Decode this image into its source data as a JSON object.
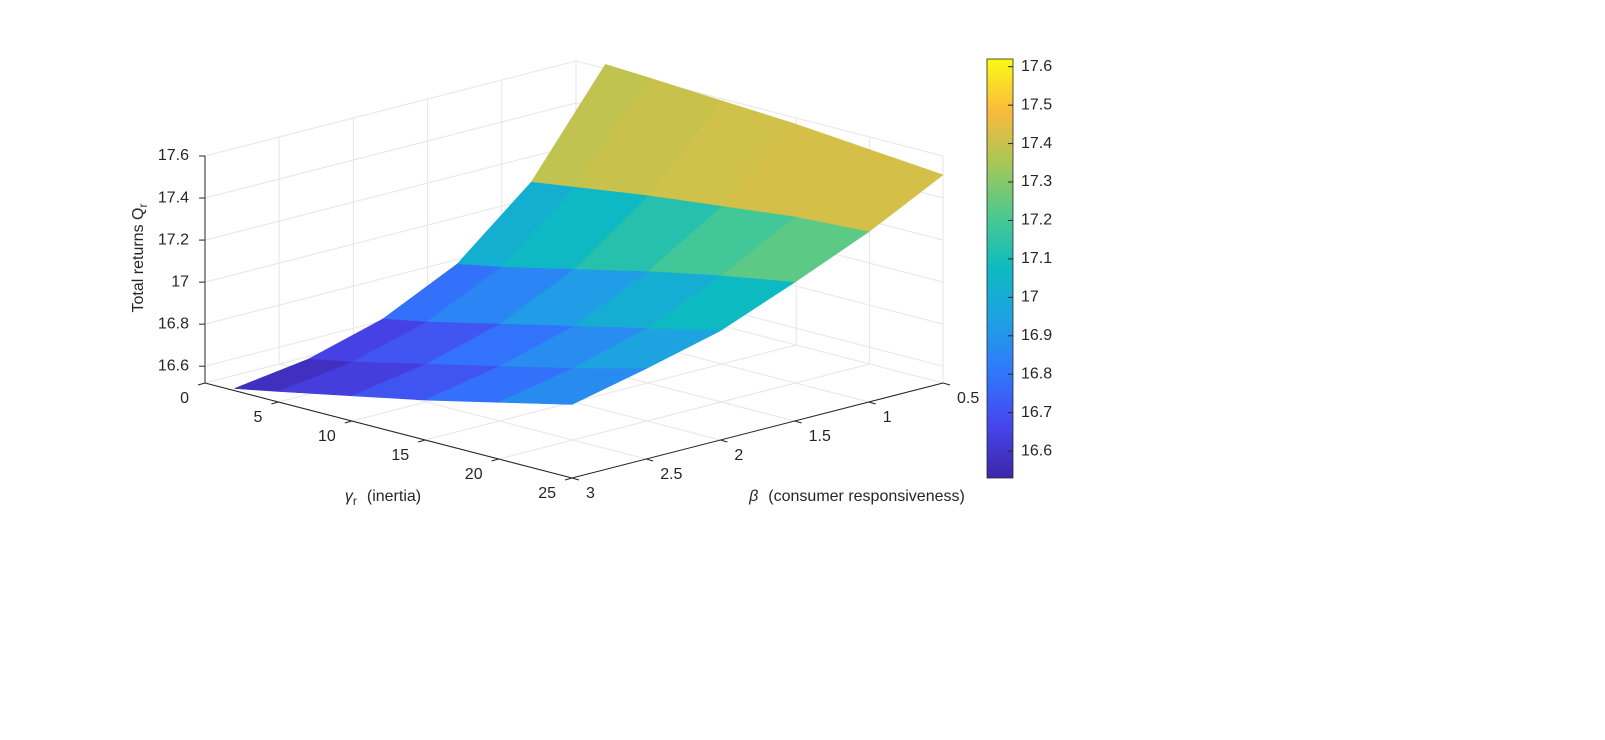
{
  "chart_data": {
    "type": "surface",
    "x_label": {
      "symbol": "γ",
      "sub": "r",
      "text": "(inertia)"
    },
    "y_label": {
      "symbol": "β",
      "text": "(consumer responsiveness)"
    },
    "z_label": {
      "text": "Total returns Q",
      "sub": "r"
    },
    "x": [
      2,
      5,
      10,
      15,
      20,
      25
    ],
    "y": [
      0.5,
      1,
      1.5,
      2,
      2.5,
      3
    ],
    "z": [
      [
        17.62,
        17.61,
        17.59,
        17.57,
        17.54,
        17.51
      ],
      [
        17.15,
        17.18,
        17.23,
        17.27,
        17.31,
        17.33
      ],
      [
        16.85,
        16.89,
        16.97,
        17.05,
        17.12,
        17.18
      ],
      [
        16.68,
        16.72,
        16.8,
        16.88,
        16.96,
        17.04
      ],
      [
        16.58,
        16.62,
        16.7,
        16.78,
        16.86,
        16.95
      ],
      [
        16.53,
        16.57,
        16.64,
        16.71,
        16.79,
        16.87
      ]
    ],
    "xlim": [
      0,
      25
    ],
    "xticks": [
      0,
      5,
      10,
      15,
      20,
      25
    ],
    "ylim": [
      0.5,
      3
    ],
    "yticks": [
      0.5,
      1,
      1.5,
      2,
      2.5,
      3
    ],
    "zlim": [
      16.52,
      17.6
    ],
    "zticks": [
      16.6,
      16.8,
      17,
      17.2,
      17.4,
      17.6
    ],
    "colormap": "parula",
    "clim": [
      16.53,
      17.62
    ],
    "colorbar_ticks": [
      16.6,
      16.7,
      16.8,
      16.9,
      17,
      17.1,
      17.2,
      17.3,
      17.4,
      17.5,
      17.6
    ],
    "grid": true
  }
}
